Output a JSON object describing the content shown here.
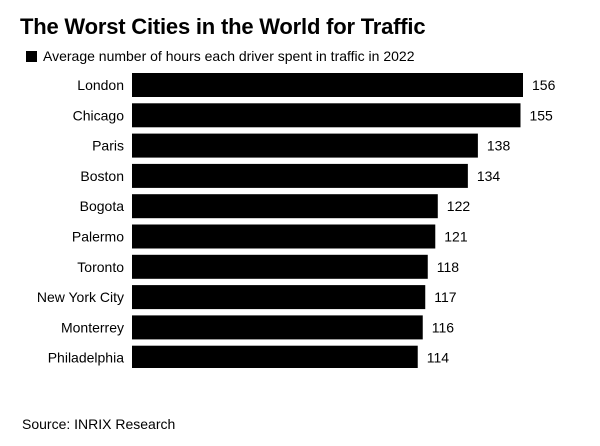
{
  "chart_data": {
    "type": "bar",
    "orientation": "horizontal",
    "title": "The Worst Cities in the World for Traffic",
    "legend": [
      "Average number of hours each driver spent in traffic in 2022"
    ],
    "legend_position": "top-left",
    "categories": [
      "London",
      "Chicago",
      "Paris",
      "Boston",
      "Bogota",
      "Palermo",
      "Toronto",
      "New York City",
      "Monterrey",
      "Philadelphia"
    ],
    "values": [
      156,
      155,
      138,
      134,
      122,
      121,
      118,
      117,
      116,
      114
    ],
    "data_labels": [
      "156",
      "155",
      "138",
      "134",
      "122",
      "121",
      "118",
      "117",
      "116",
      "114"
    ],
    "xlim": [
      0,
      156
    ],
    "grid": false,
    "bar_color": "#000000"
  },
  "source": "Source: INRIX Research"
}
